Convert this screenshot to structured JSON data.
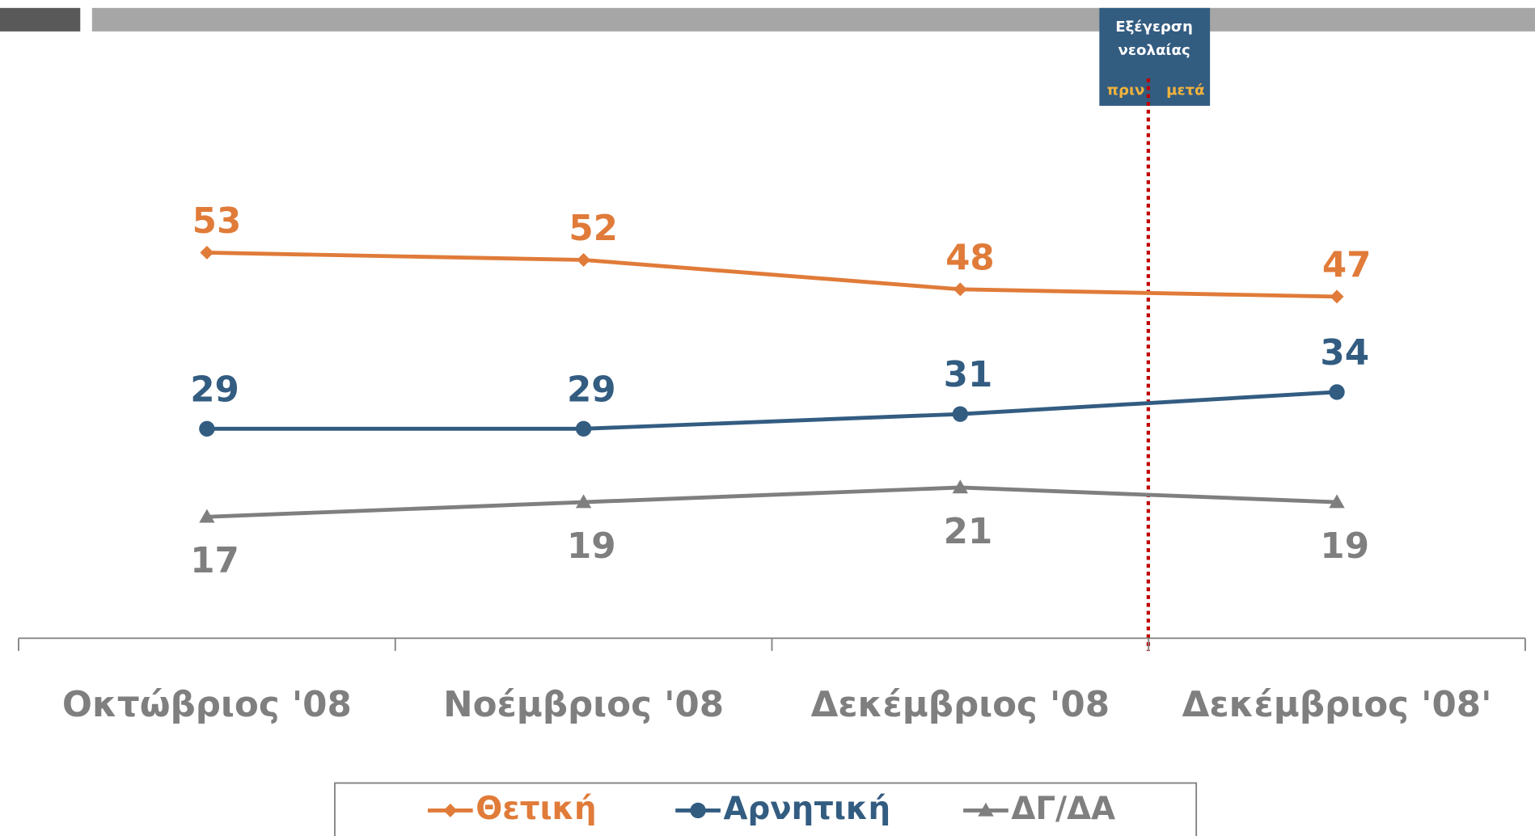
{
  "chart_data": {
    "type": "line",
    "categories": [
      "Οκτώβριος '08",
      "Νοέμβριος '08",
      "Δεκέμβριος '08",
      "Δεκέμβριος '08'"
    ],
    "series": [
      {
        "name": "Θετική",
        "color": "#e07b39",
        "marker": "diamond",
        "values": [
          53,
          52,
          48,
          47
        ]
      },
      {
        "name": "Αρνητική",
        "color": "#335c81",
        "marker": "circle",
        "values": [
          29,
          29,
          31,
          34
        ]
      },
      {
        "name": "ΔΓ/ΔΑ",
        "color": "#7f7f7f",
        "marker": "triangle",
        "values": [
          17,
          19,
          21,
          19
        ]
      }
    ],
    "ylim": [
      0,
      85
    ],
    "annotation": {
      "title": "Εξέγερση νεολαίας",
      "before": "πριν",
      "after": "μετά"
    },
    "legend": "bottom"
  }
}
